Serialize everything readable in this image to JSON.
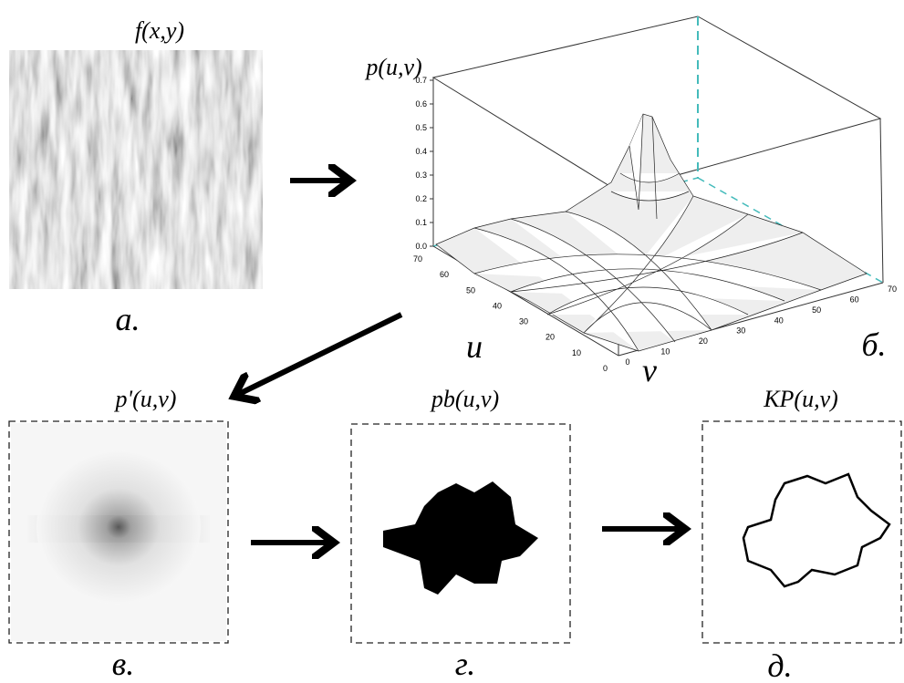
{
  "panels": {
    "a": {
      "title": "f(x,y)",
      "caption": "а."
    },
    "b": {
      "title": "p(u,v)",
      "caption": "б.",
      "u_label": "u",
      "v_label": "v",
      "z_ticks": [
        "0.0",
        "0.1",
        "0.2",
        "0.3",
        "0.4",
        "0.5",
        "0.6",
        "0.7"
      ],
      "u_ticks": [
        "0",
        "10",
        "20",
        "30",
        "40",
        "50",
        "60",
        "70"
      ],
      "v_ticks": [
        "0",
        "10",
        "20",
        "30",
        "40",
        "50",
        "60",
        "70"
      ]
    },
    "c": {
      "title": "p'(u,v)",
      "caption": "в."
    },
    "d": {
      "title": "pb(u,v)",
      "caption": "г."
    },
    "e": {
      "title": "KP(u,v)",
      "caption": "д."
    }
  }
}
